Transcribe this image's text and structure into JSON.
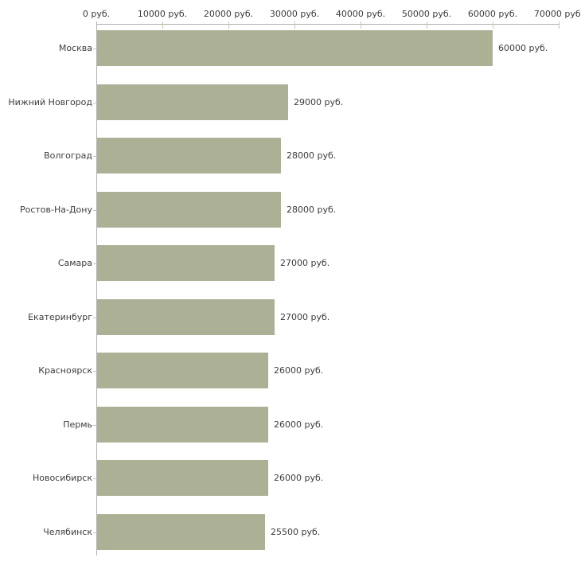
{
  "chart_data": {
    "type": "bar",
    "orientation": "horizontal",
    "title": "",
    "categories": [
      "Москва",
      "Нижний Новгород",
      "Волгоград",
      "Ростов-На-Дону",
      "Самара",
      "Екатеринбург",
      "Красноярск",
      "Пермь",
      "Новосибирск",
      "Челябинск"
    ],
    "values": [
      60000,
      29000,
      28000,
      28000,
      27000,
      27000,
      26000,
      26000,
      26000,
      25500
    ],
    "value_labels": [
      "60000 руб.",
      "29000 руб.",
      "28000 руб.",
      "28000 руб.",
      "27000 руб.",
      "27000 руб.",
      "26000 руб.",
      "26000 руб.",
      "26000 руб.",
      "25500 руб."
    ],
    "x_ticks": [
      0,
      10000,
      20000,
      30000,
      40000,
      50000,
      60000,
      70000
    ],
    "x_tick_labels": [
      "0 руб.",
      "10000 руб.",
      "20000 руб.",
      "30000 руб.",
      "40000 руб.",
      "50000 руб.",
      "60000 руб.",
      "70000 руб."
    ],
    "xlim": [
      0,
      70000
    ],
    "unit": "руб.",
    "grid": false,
    "legend": false,
    "axis_position": "top",
    "colors": {
      "bar": "#acb196",
      "axis_line": "#b1b1b1",
      "tick": "#c9c9a9",
      "text": "#3c3c3c",
      "background": "#ffffff"
    }
  }
}
